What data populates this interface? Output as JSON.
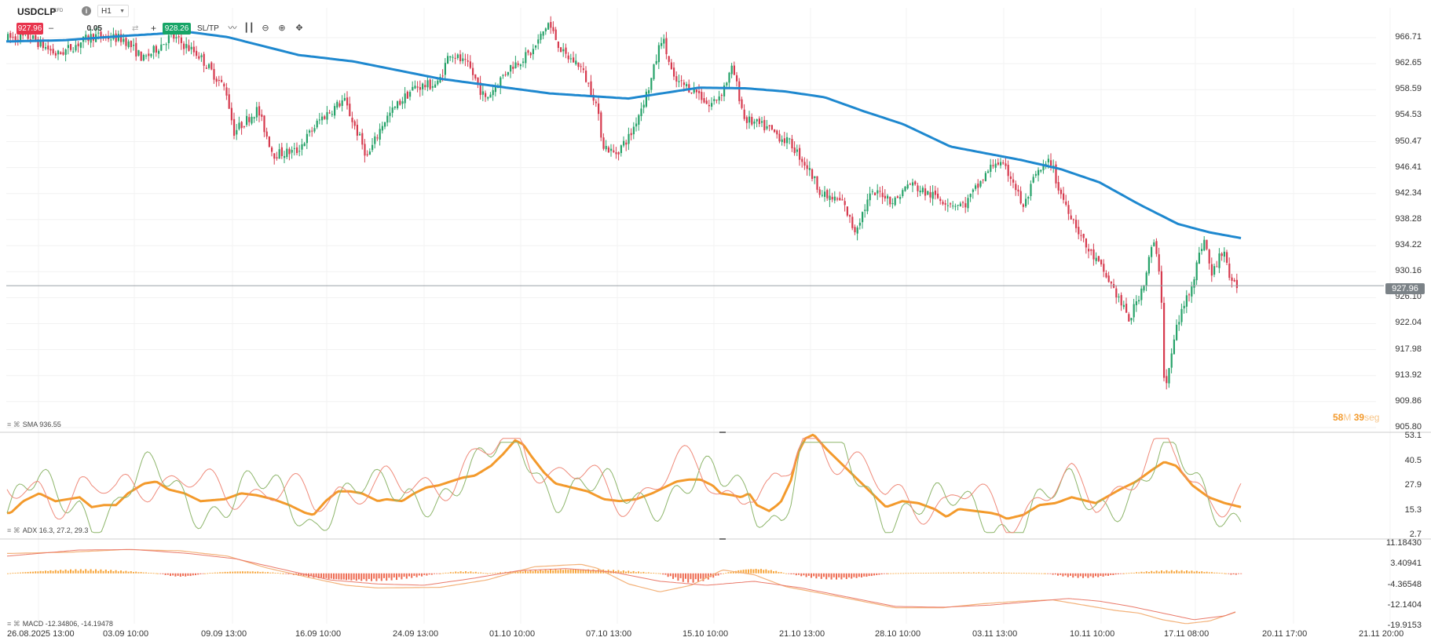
{
  "toolbar": {
    "symbol": "USDCLP",
    "symbol_type": "CFD",
    "timeframe": "H1",
    "sell_price": "927.96",
    "quantity": "0.05",
    "buy_price": "928.26",
    "sltp_label": "SL/TP",
    "info_icon": "info-icon",
    "tools": [
      "line-chart-icon",
      "candle-type-icon",
      "zoom-out-icon",
      "zoom-in-icon",
      "crosshair-icon"
    ]
  },
  "price_axis": {
    "labels": [
      "966.71",
      "962.65",
      "958.59",
      "954.53",
      "950.47",
      "946.41",
      "942.34",
      "938.28",
      "934.22",
      "930.16",
      "926.10",
      "922.04",
      "917.98",
      "913.92",
      "909.86",
      "905.80"
    ],
    "current_price": "927.96"
  },
  "time_axis": {
    "labels": [
      "26.08.2025 13:00",
      "03.09 10:00",
      "09.09 13:00",
      "16.09 10:00",
      "24.09 13:00",
      "01.10 10:00",
      "07.10 13:00",
      "15.10 10:00",
      "21.10 13:00",
      "28.10 10:00",
      "03.11 13:00",
      "10.11 10:00",
      "17.11 08:00",
      "20.11 17:00",
      "21.11 20:00"
    ]
  },
  "indicators": {
    "sma": {
      "label": "SMA 936.55",
      "value": 936.55
    },
    "adx": {
      "label": "ADX 16.3, 27.2, 29.3",
      "axis": [
        "53.1",
        "40.5",
        "27.9",
        "15.3",
        "2.7"
      ],
      "values": [
        16.3,
        27.2,
        29.3
      ]
    },
    "macd": {
      "label": "MACD -12.34806, -14.19478",
      "axis": [
        "11.18430",
        "3.40941",
        "-4.36548",
        "-12.1404",
        "-19.9153"
      ],
      "values": [
        -12.34806,
        -14.19478
      ]
    }
  },
  "timer": {
    "minutes": "58",
    "minutes_unit": "M",
    "seconds": "39",
    "seconds_unit": "seg"
  },
  "colors": {
    "bull": "#26a269",
    "bear": "#d63a4e",
    "sma": "#1e88cf",
    "adx_main": "#f39a2c",
    "adx_plus": "#8db56a",
    "adx_minus": "#ef8a7a",
    "macd_hist_pos": "#f7a53a",
    "macd_hist_neg": "#ee6b52",
    "current_line": "#9aa0a6"
  },
  "chart_data": [
    {
      "type": "candlestick",
      "price_range": [
        905.8,
        966.71
      ],
      "sma_keypoints": [
        [
          0,
          966.1
        ],
        [
          80,
          966.3
        ],
        [
          160,
          967.0
        ],
        [
          240,
          967.6
        ],
        [
          290,
          966.8
        ],
        [
          380,
          964.0
        ],
        [
          450,
          963.0
        ],
        [
          560,
          960.3
        ],
        [
          700,
          958.0
        ],
        [
          800,
          957.2
        ],
        [
          890,
          958.9
        ],
        [
          950,
          958.8
        ],
        [
          1000,
          958.3
        ],
        [
          1050,
          957.4
        ],
        [
          1100,
          955.2
        ],
        [
          1150,
          953.2
        ],
        [
          1210,
          949.7
        ],
        [
          1300,
          947.6
        ],
        [
          1350,
          946.2
        ],
        [
          1400,
          944.1
        ],
        [
          1450,
          940.7
        ],
        [
          1500,
          937.6
        ],
        [
          1540,
          936.3
        ],
        [
          1580,
          935.4
        ]
      ],
      "candle_path": [
        [
          9,
          966.6
        ],
        [
          40,
          966.8
        ],
        [
          75,
          964.0
        ],
        [
          120,
          967.0
        ],
        [
          160,
          966.5
        ],
        [
          185,
          963.3
        ],
        [
          220,
          967.0
        ],
        [
          255,
          964.0
        ],
        [
          290,
          958.5
        ],
        [
          300,
          952.0
        ],
        [
          330,
          955.5
        ],
        [
          350,
          948.5
        ],
        [
          380,
          949.0
        ],
        [
          410,
          954.0
        ],
        [
          440,
          957.0
        ],
        [
          470,
          948.0
        ],
        [
          490,
          953.5
        ],
        [
          510,
          956.5
        ],
        [
          530,
          959.0
        ],
        [
          560,
          959.5
        ],
        [
          575,
          964.5
        ],
        [
          600,
          962.0
        ],
        [
          620,
          957.0
        ],
        [
          650,
          962.0
        ],
        [
          680,
          964.5
        ],
        [
          700,
          969.0
        ],
        [
          720,
          964.0
        ],
        [
          740,
          962.5
        ],
        [
          760,
          957.0
        ],
        [
          770,
          950.0
        ],
        [
          785,
          948.5
        ],
        [
          805,
          951.5
        ],
        [
          830,
          959.5
        ],
        [
          845,
          967.0
        ],
        [
          860,
          960.0
        ],
        [
          890,
          958.3
        ],
        [
          905,
          956.0
        ],
        [
          920,
          958.0
        ],
        [
          935,
          962.0
        ],
        [
          950,
          954.0
        ],
        [
          980,
          952.5
        ],
        [
          1010,
          950.0
        ],
        [
          1030,
          946.5
        ],
        [
          1050,
          942.0
        ],
        [
          1075,
          941.0
        ],
        [
          1090,
          936.5
        ],
        [
          1110,
          942.0
        ],
        [
          1125,
          942.5
        ],
        [
          1140,
          941.0
        ],
        [
          1160,
          944.0
        ],
        [
          1180,
          942.5
        ],
        [
          1210,
          941.0
        ],
        [
          1230,
          940.5
        ],
        [
          1250,
          944.0
        ],
        [
          1270,
          947.5
        ],
        [
          1290,
          945.0
        ],
        [
          1305,
          940.0
        ],
        [
          1320,
          945.0
        ],
        [
          1340,
          947.5
        ],
        [
          1350,
          943.0
        ],
        [
          1370,
          938.0
        ],
        [
          1385,
          934.0
        ],
        [
          1400,
          931.5
        ],
        [
          1420,
          927.5
        ],
        [
          1440,
          922.5
        ],
        [
          1460,
          929.0
        ],
        [
          1470,
          935.0
        ],
        [
          1480,
          929.5
        ],
        [
          1485,
          911.0
        ],
        [
          1500,
          921.5
        ],
        [
          1520,
          928.5
        ],
        [
          1535,
          935.5
        ],
        [
          1545,
          929.5
        ],
        [
          1560,
          934.0
        ],
        [
          1570,
          927.96
        ]
      ]
    },
    {
      "type": "line",
      "name": "ADX",
      "y_range": [
        2.7,
        53.1
      ],
      "adx_keypoints": [
        [
          9,
          14
        ],
        [
          40,
          20
        ],
        [
          80,
          24
        ],
        [
          120,
          20
        ],
        [
          150,
          21
        ],
        [
          180,
          22
        ],
        [
          210,
          17
        ],
        [
          240,
          18
        ],
        [
          270,
          18
        ],
        [
          300,
          24
        ],
        [
          340,
          29
        ],
        [
          370,
          30
        ],
        [
          400,
          26
        ],
        [
          440,
          24
        ],
        [
          480,
          20
        ],
        [
          540,
          21
        ],
        [
          580,
          24
        ],
        [
          620,
          23
        ],
        [
          660,
          21
        ],
        [
          700,
          18
        ],
        [
          740,
          14
        ],
        [
          760,
          13
        ],
        [
          790,
          20
        ],
        [
          820,
          25
        ],
        [
          850,
          25
        ],
        [
          880,
          24
        ],
        [
          920,
          20
        ],
        [
          940,
          21
        ],
        [
          980,
          20
        ],
        [
          1010,
          24
        ],
        [
          1040,
          27
        ],
        [
          1070,
          28
        ],
        [
          1100,
          30
        ],
        [
          1130,
          32
        ],
        [
          1160,
          33
        ],
        [
          1200,
          38
        ],
        [
          1230,
          44
        ],
        [
          1260,
          51
        ],
        [
          1280,
          49
        ],
        [
          1300,
          43
        ],
        [
          1330,
          35
        ],
        [
          1360,
          29
        ],
        [
          1400,
          27
        ],
        [
          1440,
          25
        ],
        [
          1480,
          21
        ],
        [
          1520,
          20
        ],
        [
          1560,
          21
        ],
        [
          1600,
          24
        ],
        [
          1630,
          27
        ],
        [
          1660,
          30
        ],
        [
          1690,
          31
        ],
        [
          1720,
          31
        ],
        [
          1750,
          28
        ],
        [
          1770,
          24
        ],
        [
          1800,
          23
        ],
        [
          1820,
          22
        ],
        [
          1840,
          24
        ],
        [
          1860,
          18
        ],
        [
          1890,
          15
        ],
        [
          1910,
          18
        ],
        [
          1920,
          20
        ],
        [
          1945,
          31
        ],
        [
          1960,
          44
        ],
        [
          1980,
          52
        ],
        [
          2000,
          54
        ],
        [
          2030,
          47
        ],
        [
          2060,
          41
        ],
        [
          2100,
          33
        ],
        [
          2140,
          25
        ],
        [
          2180,
          17
        ],
        [
          2220,
          20
        ],
        [
          2260,
          19
        ],
        [
          2300,
          16
        ],
        [
          2330,
          12
        ],
        [
          2360,
          16
        ],
        [
          2400,
          15
        ],
        [
          2440,
          14
        ],
        [
          2460,
          13
        ],
        [
          2480,
          11
        ],
        [
          2520,
          13
        ],
        [
          2560,
          18
        ],
        [
          2600,
          19
        ],
        [
          2640,
          22
        ],
        [
          2700,
          19
        ],
        [
          2760,
          26
        ],
        [
          2800,
          30
        ],
        [
          2840,
          36
        ],
        [
          2870,
          40
        ],
        [
          2900,
          38
        ],
        [
          2940,
          28
        ],
        [
          2980,
          22
        ],
        [
          3020,
          19
        ],
        [
          3060,
          17
        ]
      ]
    },
    {
      "type": "bar+line",
      "name": "MACD",
      "y_range": [
        -19.9153,
        11.1843
      ],
      "hist_segments": [
        [
          9,
          200,
          1.6
        ],
        [
          200,
          260,
          -1.4
        ],
        [
          260,
          360,
          0.9
        ],
        [
          360,
          560,
          -3.2
        ],
        [
          560,
          620,
          0.8
        ],
        [
          620,
          840,
          1.8
        ],
        [
          840,
          920,
          -3.6
        ],
        [
          920,
          1000,
          2.0
        ],
        [
          1000,
          1130,
          -2.4
        ],
        [
          1130,
          1330,
          0.4
        ],
        [
          1330,
          1430,
          -1.8
        ],
        [
          1430,
          1560,
          1.2
        ],
        [
          1560,
          1580,
          -0.6
        ]
      ],
      "macd_line": [
        [
          9,
          7.5
        ],
        [
          90,
          8.0
        ],
        [
          160,
          9.0
        ],
        [
          230,
          8.5
        ],
        [
          290,
          6.5
        ],
        [
          340,
          2.0
        ],
        [
          400,
          -2.0
        ],
        [
          440,
          -4.5
        ],
        [
          480,
          -5.5
        ],
        [
          560,
          -5.3
        ],
        [
          620,
          -2.5
        ],
        [
          680,
          2.5
        ],
        [
          740,
          3.4
        ],
        [
          760,
          2.0
        ],
        [
          800,
          -4.0
        ],
        [
          840,
          -7.0
        ],
        [
          880,
          -4.5
        ],
        [
          920,
          1.3
        ],
        [
          960,
          -0.5
        ],
        [
          1000,
          -5.0
        ],
        [
          1080,
          -9.5
        ],
        [
          1140,
          -13.0
        ],
        [
          1200,
          -13.0
        ],
        [
          1250,
          -11.5
        ],
        [
          1300,
          -10.5
        ],
        [
          1340,
          -10.0
        ],
        [
          1380,
          -12.0
        ],
        [
          1420,
          -14.0
        ],
        [
          1450,
          -15.0
        ],
        [
          1480,
          -17.5
        ],
        [
          1510,
          -19.0
        ],
        [
          1540,
          -18.0
        ],
        [
          1575,
          -14.5
        ]
      ],
      "signal_line": [
        [
          9,
          6.5
        ],
        [
          100,
          8.8
        ],
        [
          170,
          9.0
        ],
        [
          240,
          7.5
        ],
        [
          300,
          5.5
        ],
        [
          360,
          1.5
        ],
        [
          420,
          -2.5
        ],
        [
          480,
          -4.0
        ],
        [
          540,
          -4.5
        ],
        [
          600,
          -2.0
        ],
        [
          660,
          1.0
        ],
        [
          720,
          1.8
        ],
        [
          780,
          0.5
        ],
        [
          840,
          -3.0
        ],
        [
          900,
          -4.5
        ],
        [
          960,
          -3.0
        ],
        [
          1020,
          -5.5
        ],
        [
          1080,
          -9.0
        ],
        [
          1140,
          -12.5
        ],
        [
          1200,
          -12.8
        ],
        [
          1260,
          -12.0
        ],
        [
          1320,
          -10.5
        ],
        [
          1360,
          -9.5
        ],
        [
          1400,
          -10.5
        ],
        [
          1440,
          -12.5
        ],
        [
          1480,
          -15.0
        ],
        [
          1520,
          -17.5
        ],
        [
          1560,
          -16.0
        ],
        [
          1575,
          -14.3
        ]
      ]
    }
  ]
}
